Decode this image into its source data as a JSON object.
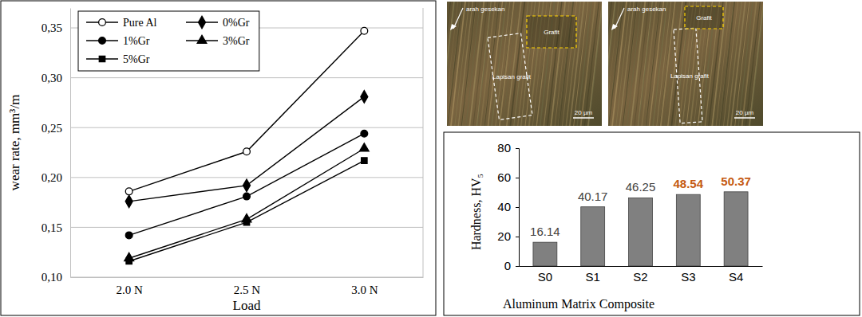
{
  "chart_data": [
    {
      "type": "line",
      "categories": [
        "2.0 N",
        "2.5 N",
        "3.0 N"
      ],
      "series": [
        {
          "name": "Pure Al",
          "color": "#000000",
          "marker": "open-circle",
          "values": [
            0.186,
            0.226,
            0.347
          ]
        },
        {
          "name": "0%Gr",
          "color": "#000000",
          "marker": "diamond",
          "values": [
            0.176,
            0.192,
            0.281
          ]
        },
        {
          "name": "1%Gr",
          "color": "#000000",
          "marker": "circle",
          "values": [
            0.142,
            0.181,
            0.244
          ]
        },
        {
          "name": "3%Gr",
          "color": "#000000",
          "marker": "triangle",
          "values": [
            0.119,
            0.158,
            0.229
          ]
        },
        {
          "name": "5%Gr",
          "color": "#000000",
          "marker": "square",
          "values": [
            0.116,
            0.155,
            0.217
          ]
        }
      ],
      "ylim": [
        0.1,
        0.37
      ],
      "yticks": [
        {
          "value": 0.1,
          "label": "0,10"
        },
        {
          "value": 0.15,
          "label": "0,15"
        },
        {
          "value": 0.2,
          "label": "0,20"
        },
        {
          "value": 0.25,
          "label": "0,25"
        },
        {
          "value": 0.3,
          "label": "0,30"
        },
        {
          "value": 0.35,
          "label": "0,35"
        }
      ],
      "x_label": "Load",
      "y_label": "wear rate, mm³/m",
      "grid": true,
      "legend": "upper left"
    },
    {
      "type": "bar",
      "categories": [
        "S0",
        "S1",
        "S2",
        "S3",
        "S4"
      ],
      "values": [
        16.14,
        40.17,
        46.25,
        48.54,
        50.37
      ],
      "color": "#808080",
      "ylim": [
        0,
        80
      ],
      "yticks": [
        0,
        20,
        40,
        60,
        80
      ],
      "x_label": "Aluminum Matrix Composite",
      "y_label": "Hardness, HV₅",
      "data_labels": true,
      "grid": false
    }
  ],
  "micrographs": [
    {
      "direction_label": "arah gesekan",
      "graphite_label": "Grafit",
      "layer_label": "Lapisan grafit",
      "scale_label": "20 µm"
    },
    {
      "direction_label": "arah gesekan",
      "graphite_label": "Grafit",
      "layer_label": "Lapisan grafit",
      "scale_label": "20 µm"
    }
  ]
}
